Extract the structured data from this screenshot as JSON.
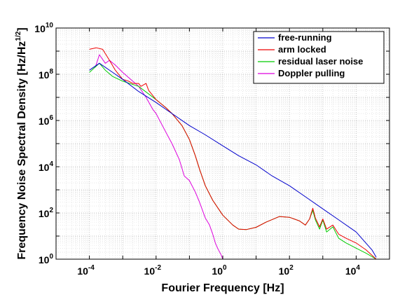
{
  "chart_data": {
    "type": "line",
    "x_scale": "log",
    "y_scale": "log",
    "xlabel": "Fourier Frequency [Hz]",
    "ylabel_main": "Frequency Noise Spectral Density [Hz/Hz",
    "ylabel_sup": "1/2",
    "ylabel_end": "]",
    "xlim": [
      1e-05,
      100000
    ],
    "ylim": [
      1,
      10000000000
    ],
    "grid": true,
    "legend_position": "top-right",
    "x_ticks": [
      {
        "value": 0.0001,
        "base": "10",
        "exp": "-4"
      },
      {
        "value": 0.01,
        "base": "10",
        "exp": "-2"
      },
      {
        "value": 1,
        "base": "10",
        "exp": "0"
      },
      {
        "value": 100,
        "base": "10",
        "exp": "2"
      },
      {
        "value": 10000,
        "base": "10",
        "exp": "4"
      }
    ],
    "y_ticks": [
      {
        "value": 1,
        "base": "10",
        "exp": "0"
      },
      {
        "value": 100,
        "base": "10",
        "exp": "2"
      },
      {
        "value": 10000,
        "base": "10",
        "exp": "4"
      },
      {
        "value": 1000000,
        "base": "10",
        "exp": "6"
      },
      {
        "value": 100000000,
        "base": "10",
        "exp": "8"
      },
      {
        "value": 10000000000,
        "base": "10",
        "exp": "10"
      }
    ],
    "series": [
      {
        "name": "free-running",
        "color": "#0000cc",
        "points": [
          [
            0.0001,
            150000000.0
          ],
          [
            0.0002,
            300000000.0
          ],
          [
            0.0005,
            120000000.0
          ],
          [
            0.001,
            60000000.0
          ],
          [
            0.003,
            18000000.0
          ],
          [
            0.01,
            6000000.0
          ],
          [
            0.03,
            2000000.0
          ],
          [
            0.1,
            600000.0
          ],
          [
            0.3,
            240000.0
          ],
          [
            1,
            80000.0
          ],
          [
            3,
            30000.0
          ],
          [
            10,
            12000.0
          ],
          [
            30,
            4000.0
          ],
          [
            100,
            1500.0
          ],
          [
            300,
            500
          ],
          [
            1000,
            150
          ],
          [
            3000,
            50
          ],
          [
            10000,
            15
          ],
          [
            30000,
            2.5
          ],
          [
            40000,
            1.2
          ]
        ]
      },
      {
        "name": "arm locked",
        "color": "#ee0000",
        "points": [
          [
            0.0001,
            1200000000.0
          ],
          [
            0.00016,
            1400000000.0
          ],
          [
            0.00025,
            1200000000.0
          ],
          [
            0.0004,
            400000000.0
          ],
          [
            0.0006,
            150000000.0
          ],
          [
            0.001,
            60000000.0
          ],
          [
            0.0015,
            50000000.0
          ],
          [
            0.002,
            40000000.0
          ],
          [
            0.003,
            40000000.0
          ],
          [
            0.0035,
            30000000.0
          ],
          [
            0.005,
            40000000.0
          ],
          [
            0.006,
            20000000.0
          ],
          [
            0.01,
            8000000.0
          ],
          [
            0.02,
            3500000.0
          ],
          [
            0.03,
            2000000.0
          ],
          [
            0.06,
            600000.0
          ],
          [
            0.1,
            150000.0
          ],
          [
            0.15,
            30000.0
          ],
          [
            0.2,
            8000.0
          ],
          [
            0.3,
            1500.0
          ],
          [
            0.5,
            350
          ],
          [
            1,
            80
          ],
          [
            2,
            30
          ],
          [
            3,
            20
          ],
          [
            5,
            19
          ],
          [
            10,
            24
          ],
          [
            20,
            40
          ],
          [
            50,
            70
          ],
          [
            100,
            65
          ],
          [
            200,
            45
          ],
          [
            300,
            30
          ],
          [
            400,
            55
          ],
          [
            500,
            160
          ],
          [
            600,
            60
          ],
          [
            800,
            25
          ],
          [
            1000,
            55
          ],
          [
            1300,
            20
          ],
          [
            2000,
            30
          ],
          [
            3000,
            12
          ],
          [
            5000,
            8
          ],
          [
            10000,
            5
          ],
          [
            20000,
            2.5
          ],
          [
            40000,
            1
          ]
        ]
      },
      {
        "name": "residual laser noise",
        "color": "#00cc00",
        "points": [
          [
            0.0001,
            120000000.0
          ],
          [
            0.0002,
            300000000.0
          ],
          [
            0.0003,
            150000000.0
          ],
          [
            0.0005,
            80000000.0
          ],
          [
            0.001,
            50000000.0
          ],
          [
            0.003,
            30000000.0
          ],
          [
            0.01,
            8000000.0
          ],
          [
            0.02,
            3500000.0
          ],
          [
            0.03,
            2000000.0
          ],
          [
            0.06,
            600000.0
          ],
          [
            0.1,
            150000.0
          ],
          [
            0.15,
            30000.0
          ],
          [
            0.2,
            8000.0
          ],
          [
            0.3,
            1500.0
          ],
          [
            0.5,
            350
          ],
          [
            1,
            80
          ],
          [
            2,
            30
          ],
          [
            3,
            20
          ],
          [
            5,
            19
          ],
          [
            10,
            24
          ],
          [
            20,
            40
          ],
          [
            50,
            70
          ],
          [
            100,
            65
          ],
          [
            200,
            45
          ],
          [
            300,
            30
          ],
          [
            400,
            55
          ],
          [
            500,
            130
          ],
          [
            600,
            50
          ],
          [
            800,
            20
          ],
          [
            1000,
            50
          ],
          [
            1300,
            15
          ],
          [
            2000,
            25
          ],
          [
            3000,
            8
          ],
          [
            5000,
            5
          ],
          [
            10000,
            3
          ],
          [
            20000,
            1.8
          ],
          [
            40000,
            1
          ]
        ]
      },
      {
        "name": "Doppler pulling",
        "color": "#dd00dd",
        "points": [
          [
            0.00015,
            200000000.0
          ],
          [
            0.0002,
            700000000.0
          ],
          [
            0.0003,
            300000000.0
          ],
          [
            0.0004,
            400000000.0
          ],
          [
            0.0006,
            250000000.0
          ],
          [
            0.001,
            120000000.0
          ],
          [
            0.002,
            50000000.0
          ],
          [
            0.003,
            30000000.0
          ],
          [
            0.005,
            10000000.0
          ],
          [
            0.008,
            3000000.0
          ],
          [
            0.01,
            2000000.0
          ],
          [
            0.02,
            300000.0
          ],
          [
            0.03,
            100000.0
          ],
          [
            0.05,
            20000.0
          ],
          [
            0.07,
            4000.0
          ],
          [
            0.1,
            2500.0
          ],
          [
            0.15,
            800
          ],
          [
            0.2,
            300
          ],
          [
            0.3,
            60
          ],
          [
            0.4,
            30
          ],
          [
            0.5,
            12
          ],
          [
            0.6,
            5
          ],
          [
            0.7,
            3
          ],
          [
            0.9,
            1.5
          ],
          [
            1,
            1
          ]
        ]
      }
    ]
  }
}
